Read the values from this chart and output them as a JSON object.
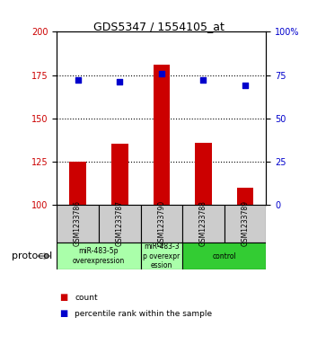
{
  "title": "GDS5347 / 1554105_at",
  "samples": [
    "GSM1233786",
    "GSM1233787",
    "GSM1233790",
    "GSM1233788",
    "GSM1233789"
  ],
  "counts": [
    125,
    135,
    181,
    136,
    110
  ],
  "percentiles": [
    72,
    71,
    76,
    72,
    69
  ],
  "ylim_left": [
    100,
    200
  ],
  "ylim_right": [
    0,
    100
  ],
  "yticks_left": [
    100,
    125,
    150,
    175,
    200
  ],
  "yticks_right": [
    0,
    25,
    50,
    75,
    100
  ],
  "bar_color": "#cc0000",
  "dot_color": "#0000cc",
  "bar_bottom": 100,
  "group_spans": [
    {
      "start": 0,
      "end": 1,
      "label": "miR-483-5p\noverexpression",
      "color": "#aaffaa"
    },
    {
      "start": 2,
      "end": 2,
      "label": "miR-483-3\np overexpr\nession",
      "color": "#aaffaa"
    },
    {
      "start": 3,
      "end": 4,
      "label": "control",
      "color": "#33cc33"
    }
  ],
  "protocol_label": "protocol",
  "legend_count_label": "count",
  "legend_pct_label": "percentile rank within the sample",
  "sample_box_color": "#cccccc",
  "dotted_line_color": "#000000",
  "background_color": "#ffffff",
  "bar_width": 0.4
}
